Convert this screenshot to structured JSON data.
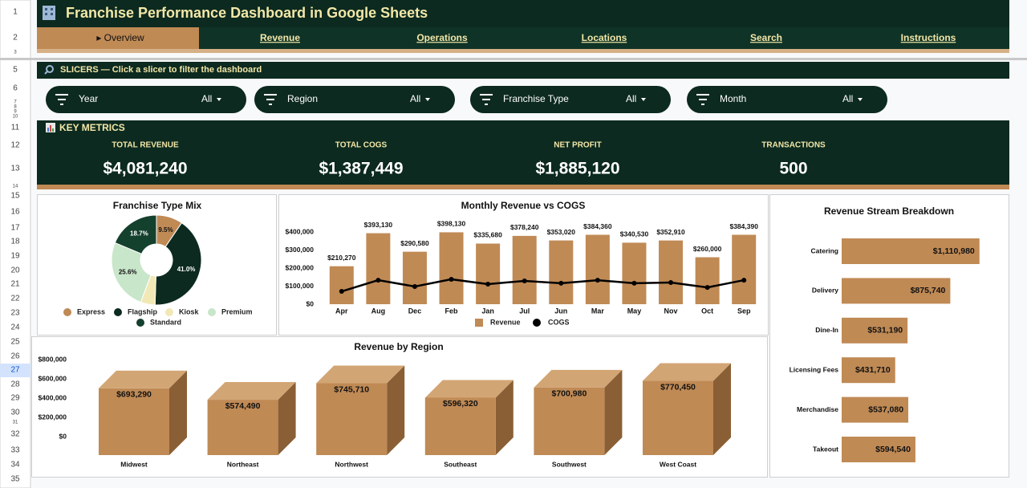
{
  "rows": [
    "1",
    "2",
    "3",
    "5",
    "6",
    "7",
    "8",
    "9",
    "10",
    "11",
    "12",
    "13",
    "14",
    "15",
    "16",
    "17",
    "18",
    "19",
    "20",
    "21",
    "22",
    "23",
    "24",
    "25",
    "26",
    "27",
    "28",
    "29",
    "30",
    "31",
    "32",
    "33",
    "34",
    "35"
  ],
  "header": {
    "title": "Franchise Performance Dashboard in Google Sheets"
  },
  "tabs": [
    "▸ Overview",
    "Revenue",
    "Operations",
    "Locations",
    "Search",
    "Instructions"
  ],
  "slicers": {
    "title": "SLICERS — Click a slicer to filter the dashboard",
    "items": [
      {
        "label": "Year",
        "value": "All"
      },
      {
        "label": "Region",
        "value": "All"
      },
      {
        "label": "Franchise Type",
        "value": "All"
      },
      {
        "label": "Month",
        "value": "All"
      }
    ]
  },
  "metrics": {
    "title": "KEY METRICS",
    "items": [
      {
        "label": "TOTAL REVENUE",
        "value": "$4,081,240"
      },
      {
        "label": "TOTAL COGS",
        "value": "$1,387,449"
      },
      {
        "label": "NET PROFIT",
        "value": "$1,885,120"
      },
      {
        "label": "TRANSACTIONS",
        "value": "500"
      }
    ]
  },
  "chart_data": [
    {
      "type": "pie",
      "donut": true,
      "title": "Franchise Type Mix",
      "categories": [
        "Express",
        "Flagship",
        "Kiosk",
        "Premium",
        "Standard"
      ],
      "values": [
        9.5,
        41.0,
        5.2,
        25.6,
        18.7
      ],
      "value_labels": [
        "9.5%",
        "41.0%",
        null,
        "25.6%",
        "18.7%"
      ],
      "colors": [
        "#c08a55",
        "#0c2a1f",
        "#f1e8b6",
        "#c8e6c9",
        "#14402e"
      ]
    },
    {
      "type": "combo",
      "title": "Monthly Revenue vs COGS",
      "categories": [
        "Apr",
        "Aug",
        "Dec",
        "Feb",
        "Jan",
        "Jul",
        "Jun",
        "Mar",
        "May",
        "Nov",
        "Oct",
        "Sep"
      ],
      "series": [
        {
          "name": "Revenue",
          "type": "bar",
          "color": "#c08a55",
          "values": [
            210270,
            393130,
            290580,
            398130,
            335680,
            378240,
            353020,
            384360,
            340530,
            352910,
            260000,
            384390
          ],
          "value_labels": [
            "$210,270",
            "$393,130",
            "$290,580",
            "$398,130",
            "$335,680",
            "$378,240",
            "$353,020",
            "$384,360",
            "$340,530",
            "$352,910",
            "$260,000",
            "$384,390"
          ]
        },
        {
          "name": "COGS",
          "type": "line",
          "color": "#000000",
          "values": [
            71000,
            133000,
            98000,
            138000,
            111000,
            129000,
            116000,
            133000,
            116000,
            120000,
            93000,
            133000
          ]
        }
      ],
      "ylim": [
        0,
        400000
      ],
      "yticks": [
        {
          "value": 0,
          "label": "$0"
        },
        {
          "value": 100000,
          "label": "$100,000"
        },
        {
          "value": 200000,
          "label": "$200,000"
        },
        {
          "value": 300000,
          "label": "$300,000"
        },
        {
          "value": 400000,
          "label": "$400,000"
        }
      ]
    },
    {
      "type": "hbar",
      "title": "Revenue Stream Breakdown",
      "categories": [
        "Catering",
        "Delivery",
        "Dine-In",
        "Licensing Fees",
        "Merchandise",
        "Takeout"
      ],
      "values": [
        1110980,
        875740,
        531190,
        431710,
        537080,
        594540
      ],
      "value_labels": [
        "$1,110,980",
        "$875,740",
        "$531,190",
        "$431,710",
        "$537,080",
        "$594,540"
      ],
      "color": "#c08a55",
      "xlim": [
        0,
        1300000
      ]
    },
    {
      "type": "bar3d",
      "title": "Revenue by Region",
      "categories": [
        "Midwest",
        "Northeast",
        "Northwest",
        "Southeast",
        "Southwest",
        "West Coast"
      ],
      "values": [
        693290,
        574490,
        745710,
        596320,
        700980,
        770450
      ],
      "value_labels": [
        "$693,290",
        "$574,490",
        "$745,710",
        "$596,320",
        "$700,980",
        "$770,450"
      ],
      "color": "#c08a55",
      "ylim": [
        0,
        800000
      ],
      "yticks": [
        {
          "value": 0,
          "label": "$0"
        },
        {
          "value": 200000,
          "label": "$200,000"
        },
        {
          "value": 400000,
          "label": "$400,000"
        },
        {
          "value": 600000,
          "label": "$600,000"
        },
        {
          "value": 800000,
          "label": "$800,000"
        }
      ]
    }
  ]
}
